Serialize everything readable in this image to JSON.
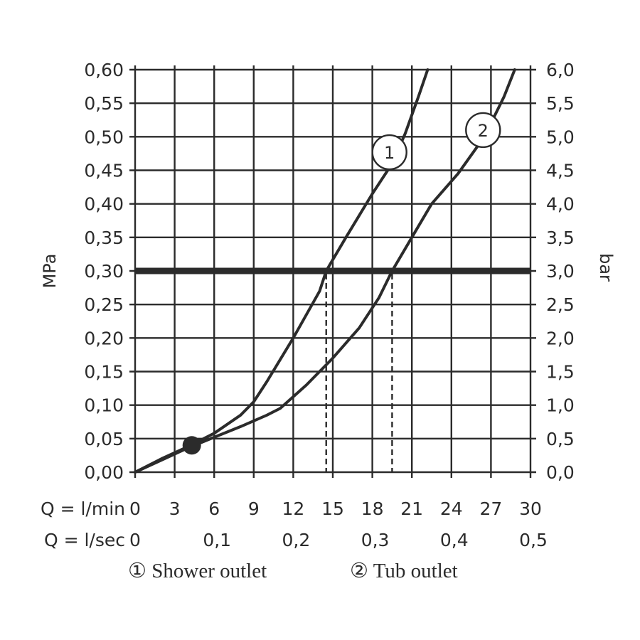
{
  "chart_data": {
    "type": "line",
    "title": "",
    "y_left_label": "MPa",
    "y_right_label": "bar",
    "ylim": [
      0,
      0.6
    ],
    "y_left_ticks": [
      "0,00",
      "0,05",
      "0,10",
      "0,15",
      "0,20",
      "0,25",
      "0,30",
      "0,35",
      "0,40",
      "0,45",
      "0,50",
      "0,55",
      "0,60"
    ],
    "y_right_ticks": [
      "0,0",
      "0,5",
      "1,0",
      "1,5",
      "2,0",
      "2,5",
      "3,0",
      "3,5",
      "4,0",
      "4,5",
      "5,0",
      "5,5",
      "6,0"
    ],
    "xlim": [
      0,
      30
    ],
    "x_row1_label": "Q = l/min",
    "x_row1_ticks": [
      "0",
      "3",
      "6",
      "9",
      "12",
      "15",
      "18",
      "21",
      "24",
      "27",
      "30"
    ],
    "x_row2_label": "Q = l/sec",
    "x_row2_ticks": [
      {
        "value": 0,
        "label": "0"
      },
      {
        "value": 6,
        "label": "0,1"
      },
      {
        "value": 12,
        "label": "0,2"
      },
      {
        "value": 18,
        "label": "0,3"
      },
      {
        "value": 24,
        "label": "0,4"
      },
      {
        "value": 30,
        "label": "0,5"
      }
    ],
    "grid": true,
    "reference_line": {
      "y": 0.3
    },
    "highlight_point": {
      "x": 4.3,
      "y": 0.04
    },
    "series": [
      {
        "marker": "1",
        "name": "Shower outlet",
        "points": [
          [
            0,
            0
          ],
          [
            2,
            0.02
          ],
          [
            4,
            0.038
          ],
          [
            6,
            0.058
          ],
          [
            8,
            0.085
          ],
          [
            9,
            0.105
          ],
          [
            10,
            0.135
          ],
          [
            12,
            0.2
          ],
          [
            14,
            0.27
          ],
          [
            14.5,
            0.3
          ],
          [
            16,
            0.35
          ],
          [
            18,
            0.415
          ],
          [
            19.5,
            0.46
          ],
          [
            20.5,
            0.505
          ],
          [
            21.5,
            0.56
          ],
          [
            22.2,
            0.6
          ]
        ],
        "marker_at": [
          19.3,
          0.477
        ],
        "drop_to_x": 14.5
      },
      {
        "marker": "2",
        "name": "Tub outlet",
        "points": [
          [
            0,
            0
          ],
          [
            2,
            0.018
          ],
          [
            4,
            0.036
          ],
          [
            6,
            0.052
          ],
          [
            8,
            0.068
          ],
          [
            10,
            0.085
          ],
          [
            11,
            0.095
          ],
          [
            13,
            0.13
          ],
          [
            15,
            0.17
          ],
          [
            17,
            0.215
          ],
          [
            18.5,
            0.26
          ],
          [
            19.5,
            0.3
          ],
          [
            21,
            0.35
          ],
          [
            22.5,
            0.4
          ],
          [
            24.5,
            0.445
          ],
          [
            26.5,
            0.5
          ],
          [
            28,
            0.56
          ],
          [
            28.8,
            0.6
          ]
        ],
        "marker_at": [
          26.4,
          0.51
        ],
        "drop_to_x": 19.5
      }
    ],
    "legend": [
      {
        "symbol": "①",
        "label": "Shower outlet"
      },
      {
        "symbol": "②",
        "label": "Tub outlet"
      }
    ]
  }
}
